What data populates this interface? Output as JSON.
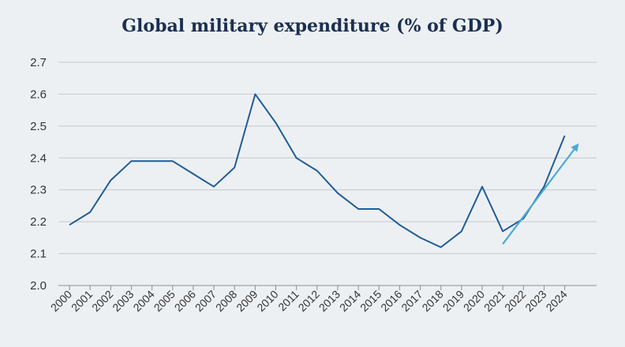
{
  "chart_data": {
    "type": "line",
    "title": "Global military expenditure (% of GDP)",
    "xlabel": "",
    "ylabel": "",
    "ylim": [
      2.0,
      2.7
    ],
    "yticks": [
      "2.0",
      "2.1",
      "2.2",
      "2.3",
      "2.4",
      "2.5",
      "2.6",
      "2.7"
    ],
    "categories": [
      "2000",
      "2001",
      "2002",
      "2003",
      "2004",
      "2005",
      "2006",
      "2007",
      "2008",
      "2009",
      "2010",
      "2011",
      "2012",
      "2013",
      "2014",
      "2015",
      "2016",
      "2017",
      "2018",
      "2019",
      "2020",
      "2021",
      "2022",
      "2023",
      "2024"
    ],
    "series": [
      {
        "values": [
          2.19,
          2.23,
          2.33,
          2.39,
          2.39,
          2.39,
          2.35,
          2.31,
          2.37,
          2.6,
          2.51,
          2.4,
          2.36,
          2.29,
          2.24,
          2.24,
          2.19,
          2.15,
          2.12,
          2.17,
          2.31,
          2.17,
          2.21,
          2.31,
          2.47
        ],
        "color": "#1f5c99"
      }
    ],
    "trend_arrow": {
      "from": [
        "2021",
        2.13
      ],
      "to": [
        "2024",
        2.44
      ],
      "color": "#4aaad4"
    },
    "grid": true,
    "legend": "none"
  }
}
